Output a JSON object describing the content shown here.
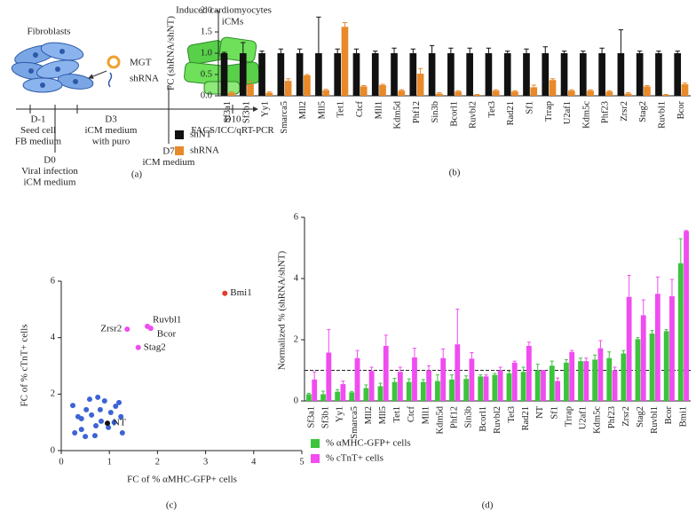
{
  "diagram": {
    "panel": "(a)",
    "cells_label": "Fibroblasts",
    "vector_labels": [
      "MGT",
      "shRNA"
    ],
    "result_labels": [
      "Induced cardiomyocytes",
      "iCMs"
    ],
    "timeline": [
      {
        "day": "D-1",
        "lines": [
          "Seed cell",
          "FB medium"
        ]
      },
      {
        "day": "D0",
        "lines": [
          "Viral infection",
          "iCM medium"
        ]
      },
      {
        "day": "D3",
        "lines": [
          "iCM medium",
          "with puro"
        ]
      },
      {
        "day": "D7",
        "lines": [
          "iCM medium"
        ]
      },
      {
        "day": "D10",
        "lines": [
          "FACS/ICC/qRT-PCR"
        ]
      }
    ]
  },
  "chart_data": [
    {
      "type": "bar",
      "panel": "(b)",
      "y_label": "FC (shRNA/shNT)",
      "categories": [
        "Sf3a1",
        "Sf3b1",
        "Yy1",
        "Smarca5",
        "Mll2",
        "Mll5",
        "Tet1",
        "Ctcf",
        "Mll1",
        "Kdm5d",
        "Phf12",
        "Sin3b",
        "Bcorl1",
        "Ruvbl2",
        "Tet3",
        "Rad21",
        "Sf1",
        "Trrap",
        "U2af1",
        "Kdm5c",
        "Phf23",
        "Zrsr2",
        "Stag2",
        "Ruvbl1",
        "Bcor"
      ],
      "label_colors": [
        "#3a4fb0",
        "#3a4fb0",
        "#222222",
        "#222222",
        "#222222",
        "#222222",
        "#222222",
        "#222222",
        "#222222",
        "#222222",
        "#222222",
        "#222222",
        "#222222",
        "#222222",
        "#222222",
        "#222222",
        "#222222",
        "#222222",
        "#222222",
        "#222222",
        "#222222",
        "#e0302a",
        "#e0302a",
        "#e0302a",
        "#e0302a"
      ],
      "series": [
        {
          "name": "shNT",
          "color": "#111111",
          "values": [
            1,
            1,
            1,
            1,
            1,
            1,
            1,
            1,
            1,
            1,
            1,
            1,
            1,
            1,
            1,
            1,
            1,
            1,
            1,
            1,
            1,
            1,
            1,
            1,
            1
          ],
          "errors": [
            0.02,
            0.25,
            0.05,
            0.1,
            0.1,
            0.85,
            0.1,
            0.1,
            0.05,
            0.12,
            0.1,
            0.18,
            0.12,
            0.12,
            0.12,
            0.05,
            0.1,
            0.15,
            0.05,
            0.05,
            0.12,
            0.55,
            0.05,
            0.05,
            0.05
          ]
        },
        {
          "name": "shRNA",
          "color": "#e8892a",
          "values": [
            0.07,
            0.27,
            0.07,
            0.35,
            0.48,
            0.13,
            1.62,
            0.22,
            0.25,
            0.12,
            0.52,
            0.05,
            0.1,
            0.02,
            0.12,
            0.1,
            0.2,
            0.37,
            0.12,
            0.12,
            0.1,
            0.05,
            0.22,
            0.02,
            0.27
          ],
          "errors": [
            0.02,
            0.07,
            0.02,
            0.05,
            0.02,
            0.02,
            0.1,
            0.02,
            0.02,
            0.02,
            0.12,
            0.02,
            0.02,
            0.01,
            0.02,
            0.02,
            0.05,
            0.03,
            0.02,
            0.02,
            0.02,
            0.02,
            0.02,
            0.01,
            0.03
          ]
        }
      ],
      "ylim": [
        0,
        2
      ],
      "yticks": [
        {
          "value": 0,
          "label": "0.0"
        },
        0.5,
        {
          "value": 1,
          "label": "1.0"
        },
        1.5,
        {
          "value": 2,
          "label": "2.0"
        }
      ],
      "legend": "below"
    },
    {
      "type": "scatter",
      "panel": "(c)",
      "x_label": "FC of % αMHC-GFP+ cells",
      "y_label": "FC of % cTnT+ cells",
      "xlim": [
        0,
        5
      ],
      "xticks": [
        0,
        1,
        2,
        3,
        4,
        5
      ],
      "ylim": [
        0,
        6
      ],
      "yticks": [
        0,
        2,
        4,
        6
      ],
      "series": [
        {
          "color": "#3d63d6",
          "x": [
            0.24,
            0.35,
            0.42,
            0.52,
            0.63,
            0.72,
            0.76,
            0.9,
            0.59,
            0.5,
            0.7,
            0.83,
            0.98,
            1.03,
            1.13,
            1.2,
            1.24,
            1.27,
            1.1,
            0.81,
            0.28,
            0.42
          ],
          "y": [
            1.6,
            1.2,
            0.75,
            1.45,
            1.26,
            0.88,
            1.89,
            1.76,
            1.82,
            0.5,
            0.53,
            1.04,
            0.82,
            1.35,
            1.57,
            1.7,
            1.2,
            0.63,
            1.0,
            1.45,
            0.63,
            1.13
          ]
        }
      ],
      "labeled_points": [
        {
          "label": "Bmi1",
          "x": 3.4,
          "y": 5.57,
          "color": "#e53a2a"
        },
        {
          "label": "Zrsr2",
          "x": 1.37,
          "y": 4.3,
          "color": "#f04cf0"
        },
        {
          "label": "Ruvbl1",
          "x": 1.79,
          "y": 4.4,
          "color": "#f04cf0"
        },
        {
          "label": "Bcor",
          "x": 1.86,
          "y": 4.33,
          "color": "#f04cf0"
        },
        {
          "label": "Stag2",
          "x": 1.6,
          "y": 3.65,
          "color": "#f04cf0"
        },
        {
          "label": "NT",
          "x": 0.96,
          "y": 0.97,
          "color": "#111111"
        }
      ]
    },
    {
      "type": "bar",
      "panel": "(d)",
      "y_label": "Normalized % (shRNA/shNT)",
      "categories": [
        "Sf3a1",
        "Sf3b1",
        "Yy1",
        "Smarca5",
        "Mll2",
        "Mll5",
        "Tet1",
        "Ctcf",
        "Mll1",
        "Kdm5d",
        "Phf12",
        "Sin3b",
        "Bcorl1",
        "Ruvbl2",
        "Tet3",
        "Rad21",
        "NT",
        "Sf1",
        "Trrap",
        "U2af1",
        "Kdm5c",
        "Phf23",
        "Zrsr2",
        "Stag2",
        "Ruvbl1",
        "Bcor",
        "Bmi1"
      ],
      "label_colors": [
        "#3a4fb0",
        "#3a4fb0",
        "#222222",
        "#222222",
        "#222222",
        "#222222",
        "#222222",
        "#222222",
        "#222222",
        "#222222",
        "#222222",
        "#222222",
        "#222222",
        "#222222",
        "#222222",
        "#222222",
        "#222222",
        "#222222",
        "#222222",
        "#222222",
        "#222222",
        "#222222",
        "#e0302a",
        "#e0302a",
        "#e0302a",
        "#e0302a",
        "#e0302a"
      ],
      "series": [
        {
          "name": "% αMHC-GFP+ cells",
          "color": "#3cc43c",
          "values": [
            0.22,
            0.22,
            0.3,
            0.28,
            0.42,
            0.48,
            0.62,
            0.62,
            0.62,
            0.65,
            0.7,
            0.72,
            0.8,
            0.85,
            0.9,
            0.95,
            1.0,
            1.15,
            1.25,
            1.3,
            1.35,
            1.4,
            1.55,
            2.02,
            2.2,
            2.28,
            4.5
          ],
          "errors": [
            0.03,
            0.1,
            0.07,
            0.03,
            0.1,
            0.1,
            0.12,
            0.1,
            0.08,
            0.2,
            0.15,
            0.1,
            0.05,
            0.05,
            0.08,
            0.15,
            0.2,
            0.15,
            0.1,
            0.1,
            0.15,
            0.2,
            0.1,
            0.05,
            0.1,
            0.05,
            0.8
          ]
        },
        {
          "name": "% cTnT+ cells",
          "color": "#f04cf0",
          "values": [
            0.7,
            1.58,
            0.55,
            1.4,
            0.98,
            1.8,
            0.95,
            1.42,
            1.0,
            1.4,
            1.85,
            1.38,
            0.8,
            1.0,
            1.25,
            1.8,
            1.0,
            0.65,
            1.6,
            1.3,
            1.72,
            1.0,
            3.4,
            2.8,
            3.5,
            3.42,
            5.55
          ],
          "errors": [
            0.25,
            0.75,
            0.1,
            0.25,
            0.12,
            0.35,
            0.15,
            0.3,
            0.15,
            0.3,
            1.15,
            0.2,
            0.05,
            0.1,
            0.05,
            0.12,
            0.0,
            0.1,
            0.05,
            0.1,
            0.25,
            0.1,
            0.7,
            0.5,
            0.55,
            0.55,
            0.02
          ]
        }
      ],
      "ylim": [
        0,
        6
      ],
      "yticks": [
        0,
        2,
        4,
        6
      ],
      "reference_line": 1,
      "legend": "below"
    }
  ]
}
